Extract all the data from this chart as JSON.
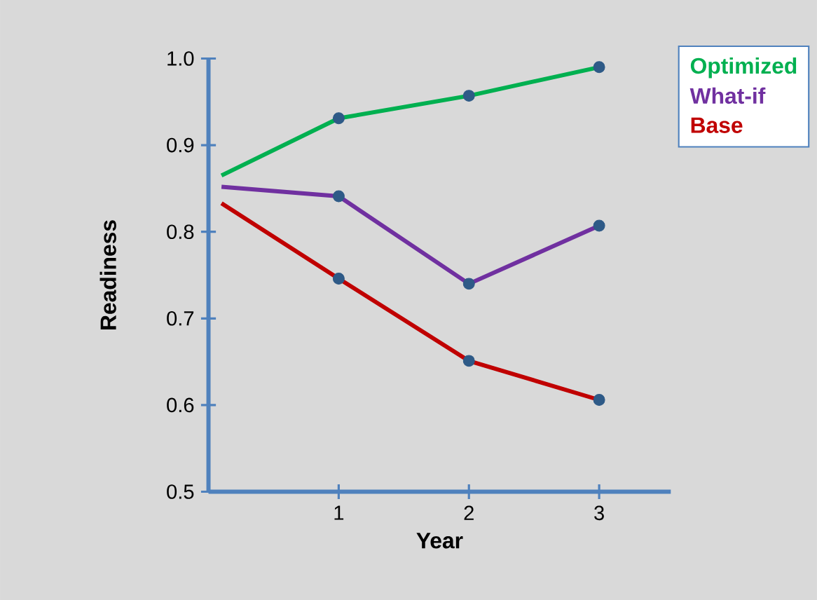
{
  "chart_data": {
    "type": "line",
    "xlabel": "Year",
    "ylabel": "Readiness",
    "xlim": [
      0,
      3.55
    ],
    "ylim": [
      0.5,
      1.0
    ],
    "xticks": [
      1,
      2,
      3
    ],
    "yticks": [
      0.5,
      0.6,
      0.7,
      0.8,
      0.9,
      {
        "value": 1.0,
        "label": "1.0"
      }
    ],
    "legend": "top right",
    "grid": false,
    "series": [
      {
        "name": "Optimized",
        "color": "#00b050",
        "x": [
          0.1,
          1,
          2,
          3
        ],
        "values": [
          0.865,
          0.931,
          0.957,
          0.99
        ]
      },
      {
        "name": "What-if",
        "color": "#7030a0",
        "x": [
          0.1,
          1,
          2,
          3
        ],
        "values": [
          0.852,
          0.841,
          0.74,
          0.807
        ]
      },
      {
        "name": "Base",
        "color": "#c00000",
        "x": [
          0.1,
          1,
          2,
          3
        ],
        "values": [
          0.833,
          0.746,
          0.651,
          0.606
        ]
      },
      {
        "type": "scatter",
        "marker": "circle",
        "color": "#2e5a87",
        "x": [
          1,
          2,
          3,
          1,
          2,
          3,
          1,
          2,
          3
        ],
        "values": [
          0.931,
          0.957,
          0.99,
          0.841,
          0.74,
          0.807,
          0.746,
          0.651,
          0.606
        ]
      }
    ]
  }
}
